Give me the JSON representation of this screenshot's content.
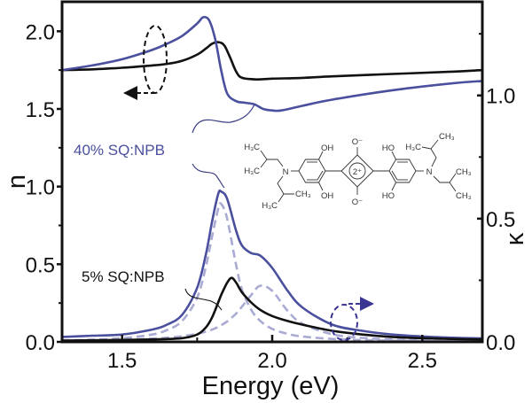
{
  "chart_data": {
    "type": "line",
    "title": "",
    "xlabel": "Energy (eV)",
    "ylabel_left": "n",
    "ylabel_right": "κ",
    "xlim": [
      1.3,
      2.7
    ],
    "ylim_left": [
      0,
      2.19
    ],
    "ylim_right": [
      0,
      1.38
    ],
    "x_ticks": [
      {
        "value": 1.5,
        "label": "1.5"
      },
      {
        "value": 2.0,
        "label": "2.0"
      },
      {
        "value": 2.5,
        "label": "2.5"
      }
    ],
    "x_minor_ticks": [
      1.75,
      2.25
    ],
    "y_left_ticks": [
      {
        "value": 0,
        "label": "0.0"
      },
      {
        "value": 0.5,
        "label": "0.5"
      },
      {
        "value": 1.0,
        "label": "1.0"
      },
      {
        "value": 1.5,
        "label": "1.5"
      },
      {
        "value": 2.0,
        "label": "2.0"
      }
    ],
    "y_left_minor_ticks": [
      0.25,
      0.75,
      1.25,
      1.75
    ],
    "y_right_ticks": [
      {
        "value": 0,
        "label": "0.0"
      },
      {
        "value": 0.5,
        "label": "0.5"
      },
      {
        "value": 1.0,
        "label": "1.0"
      }
    ],
    "y_right_minor_ticks": [
      0.25,
      0.75,
      1.25
    ],
    "grid": false,
    "colors": {
      "black": "#111111",
      "blue": "#4a4f9e",
      "dashed": "#a9abd2",
      "arrow_blue": "#3a3592"
    },
    "series": [
      {
        "name": "n 5% SQ:NPB",
        "axis": "left",
        "style": "solid",
        "color": "#111111",
        "x": [
          1.3,
          1.4,
          1.5,
          1.6,
          1.65,
          1.7,
          1.75,
          1.78,
          1.8,
          1.82,
          1.84,
          1.86,
          1.88,
          1.9,
          1.95,
          2.0,
          2.1,
          2.2,
          2.4,
          2.6,
          2.7
        ],
        "y": [
          1.75,
          1.755,
          1.765,
          1.78,
          1.79,
          1.81,
          1.85,
          1.89,
          1.92,
          1.93,
          1.91,
          1.83,
          1.74,
          1.7,
          1.69,
          1.695,
          1.7,
          1.71,
          1.725,
          1.74,
          1.75
        ]
      },
      {
        "name": "n 40% SQ:NPB",
        "axis": "left",
        "style": "solid",
        "color": "#4a4f9e",
        "x": [
          1.3,
          1.4,
          1.5,
          1.6,
          1.65,
          1.7,
          1.75,
          1.77,
          1.79,
          1.81,
          1.83,
          1.85,
          1.88,
          1.91,
          1.94,
          1.97,
          2.0,
          2.03,
          2.1,
          2.2,
          2.4,
          2.6,
          2.7
        ],
        "y": [
          1.75,
          1.78,
          1.82,
          1.88,
          1.92,
          1.97,
          2.05,
          2.09,
          2.07,
          1.95,
          1.75,
          1.6,
          1.55,
          1.54,
          1.53,
          1.5,
          1.49,
          1.49,
          1.52,
          1.56,
          1.62,
          1.665,
          1.68
        ]
      },
      {
        "name": "κ 40% SQ:NPB",
        "axis": "right",
        "style": "solid",
        "color": "#4a4f9e",
        "x": [
          1.3,
          1.4,
          1.5,
          1.6,
          1.65,
          1.7,
          1.75,
          1.78,
          1.8,
          1.82,
          1.83,
          1.85,
          1.88,
          1.9,
          1.93,
          1.96,
          2.0,
          2.05,
          2.1,
          2.2,
          2.3,
          2.4,
          2.5,
          2.6,
          2.7
        ],
        "y": [
          0.02,
          0.025,
          0.03,
          0.05,
          0.07,
          0.11,
          0.22,
          0.36,
          0.49,
          0.6,
          0.61,
          0.58,
          0.45,
          0.39,
          0.36,
          0.35,
          0.3,
          0.21,
          0.14,
          0.07,
          0.045,
          0.03,
          0.022,
          0.017,
          0.014
        ]
      },
      {
        "name": "κ component 1",
        "axis": "right",
        "style": "dashed",
        "color": "#a9abd2",
        "x": [
          1.3,
          1.4,
          1.5,
          1.6,
          1.65,
          1.7,
          1.75,
          1.78,
          1.8,
          1.82,
          1.83,
          1.85,
          1.88,
          1.9,
          1.93,
          1.96,
          2.0,
          2.05,
          2.1,
          2.2,
          2.3,
          2.4,
          2.5,
          2.6,
          2.7
        ],
        "y": [
          0.006,
          0.009,
          0.015,
          0.03,
          0.048,
          0.085,
          0.18,
          0.31,
          0.43,
          0.54,
          0.56,
          0.5,
          0.31,
          0.21,
          0.13,
          0.085,
          0.053,
          0.033,
          0.022,
          0.012,
          0.007,
          0.005,
          0.004,
          0.003,
          0.002
        ]
      },
      {
        "name": "κ component 2",
        "axis": "right",
        "style": "dashed",
        "color": "#a9abd2",
        "x": [
          1.3,
          1.4,
          1.5,
          1.6,
          1.65,
          1.7,
          1.75,
          1.78,
          1.8,
          1.82,
          1.85,
          1.88,
          1.9,
          1.93,
          1.96,
          2.0,
          2.05,
          2.1,
          2.2,
          2.3,
          2.4,
          2.5,
          2.6,
          2.7
        ],
        "y": [
          0.004,
          0.006,
          0.008,
          0.013,
          0.017,
          0.023,
          0.033,
          0.042,
          0.05,
          0.061,
          0.083,
          0.115,
          0.144,
          0.19,
          0.228,
          0.207,
          0.128,
          0.074,
          0.031,
          0.016,
          0.01,
          0.0064,
          0.0047,
          0.0035
        ]
      },
      {
        "name": "κ 5% SQ:NPB",
        "axis": "right",
        "style": "solid",
        "color": "#111111",
        "x": [
          1.3,
          1.5,
          1.6,
          1.7,
          1.75,
          1.78,
          1.8,
          1.82,
          1.83,
          1.85,
          1.865,
          1.88,
          1.9,
          1.93,
          1.96,
          2.0,
          2.05,
          2.1,
          2.2,
          2.3,
          2.4,
          2.5,
          2.6,
          2.7
        ],
        "y": [
          0.005,
          0.008,
          0.01,
          0.015,
          0.03,
          0.06,
          0.1,
          0.16,
          0.19,
          0.24,
          0.26,
          0.24,
          0.2,
          0.16,
          0.13,
          0.105,
          0.085,
          0.07,
          0.045,
          0.03,
          0.02,
          0.015,
          0.012,
          0.01
        ]
      }
    ],
    "annotations": {
      "label_40": "40% SQ:NPB",
      "label_5": "5% SQ:NPB"
    }
  },
  "molecule": {
    "o_minus_top": "O⁻",
    "o_minus_bottom": "O⁻",
    "charge": "2⁺",
    "oh_tl": "OH",
    "oh_bl": "OH",
    "ho_tr": "HO",
    "ho_br": "HO",
    "n_left": "N",
    "n_right": "N",
    "h3c_1": "H₃C",
    "h3c_2": "H₃C",
    "ch3_3": "CH₃",
    "h3c_4": "H₃C",
    "h3c_5": "H₃C",
    "ch3_6": "CH₃",
    "ch3_7": "CH₃",
    "ch3_8": "CH₃"
  }
}
